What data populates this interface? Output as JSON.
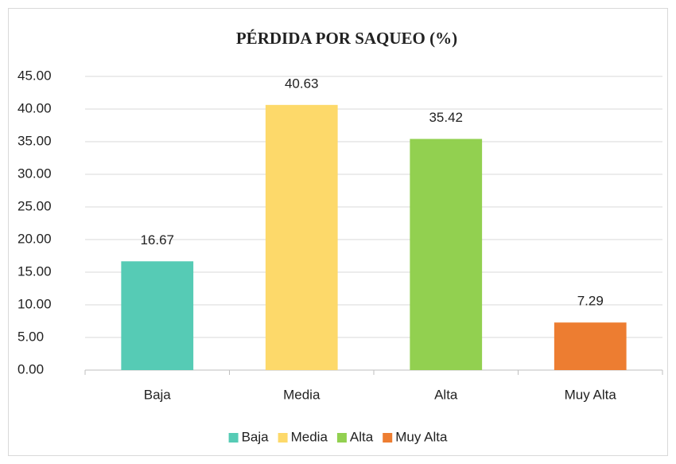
{
  "chart_data": {
    "type": "bar",
    "title": "PÉRDIDA POR SAQUEO (%)",
    "categories": [
      "Baja",
      "Media",
      "Alta",
      "Muy Alta"
    ],
    "values": [
      16.67,
      40.63,
      35.42,
      7.29
    ],
    "colors": [
      "#56cbb5",
      "#fdd96a",
      "#92d050",
      "#ed7d31"
    ],
    "ylim": [
      0,
      45
    ],
    "yticks": [
      {
        "value": 0,
        "label": "0.00"
      },
      {
        "value": 5,
        "label": "5.00"
      },
      {
        "value": 10,
        "label": "10.00"
      },
      {
        "value": 15,
        "label": "15.00"
      },
      {
        "value": 20,
        "label": "20.00"
      },
      {
        "value": 25,
        "label": "25.00"
      },
      {
        "value": 30,
        "label": "30.00"
      },
      {
        "value": 35,
        "label": "35.00"
      },
      {
        "value": 40,
        "label": "40.00"
      },
      {
        "value": 45,
        "label": "45.00"
      }
    ],
    "grid": true,
    "legend": "bottom"
  }
}
